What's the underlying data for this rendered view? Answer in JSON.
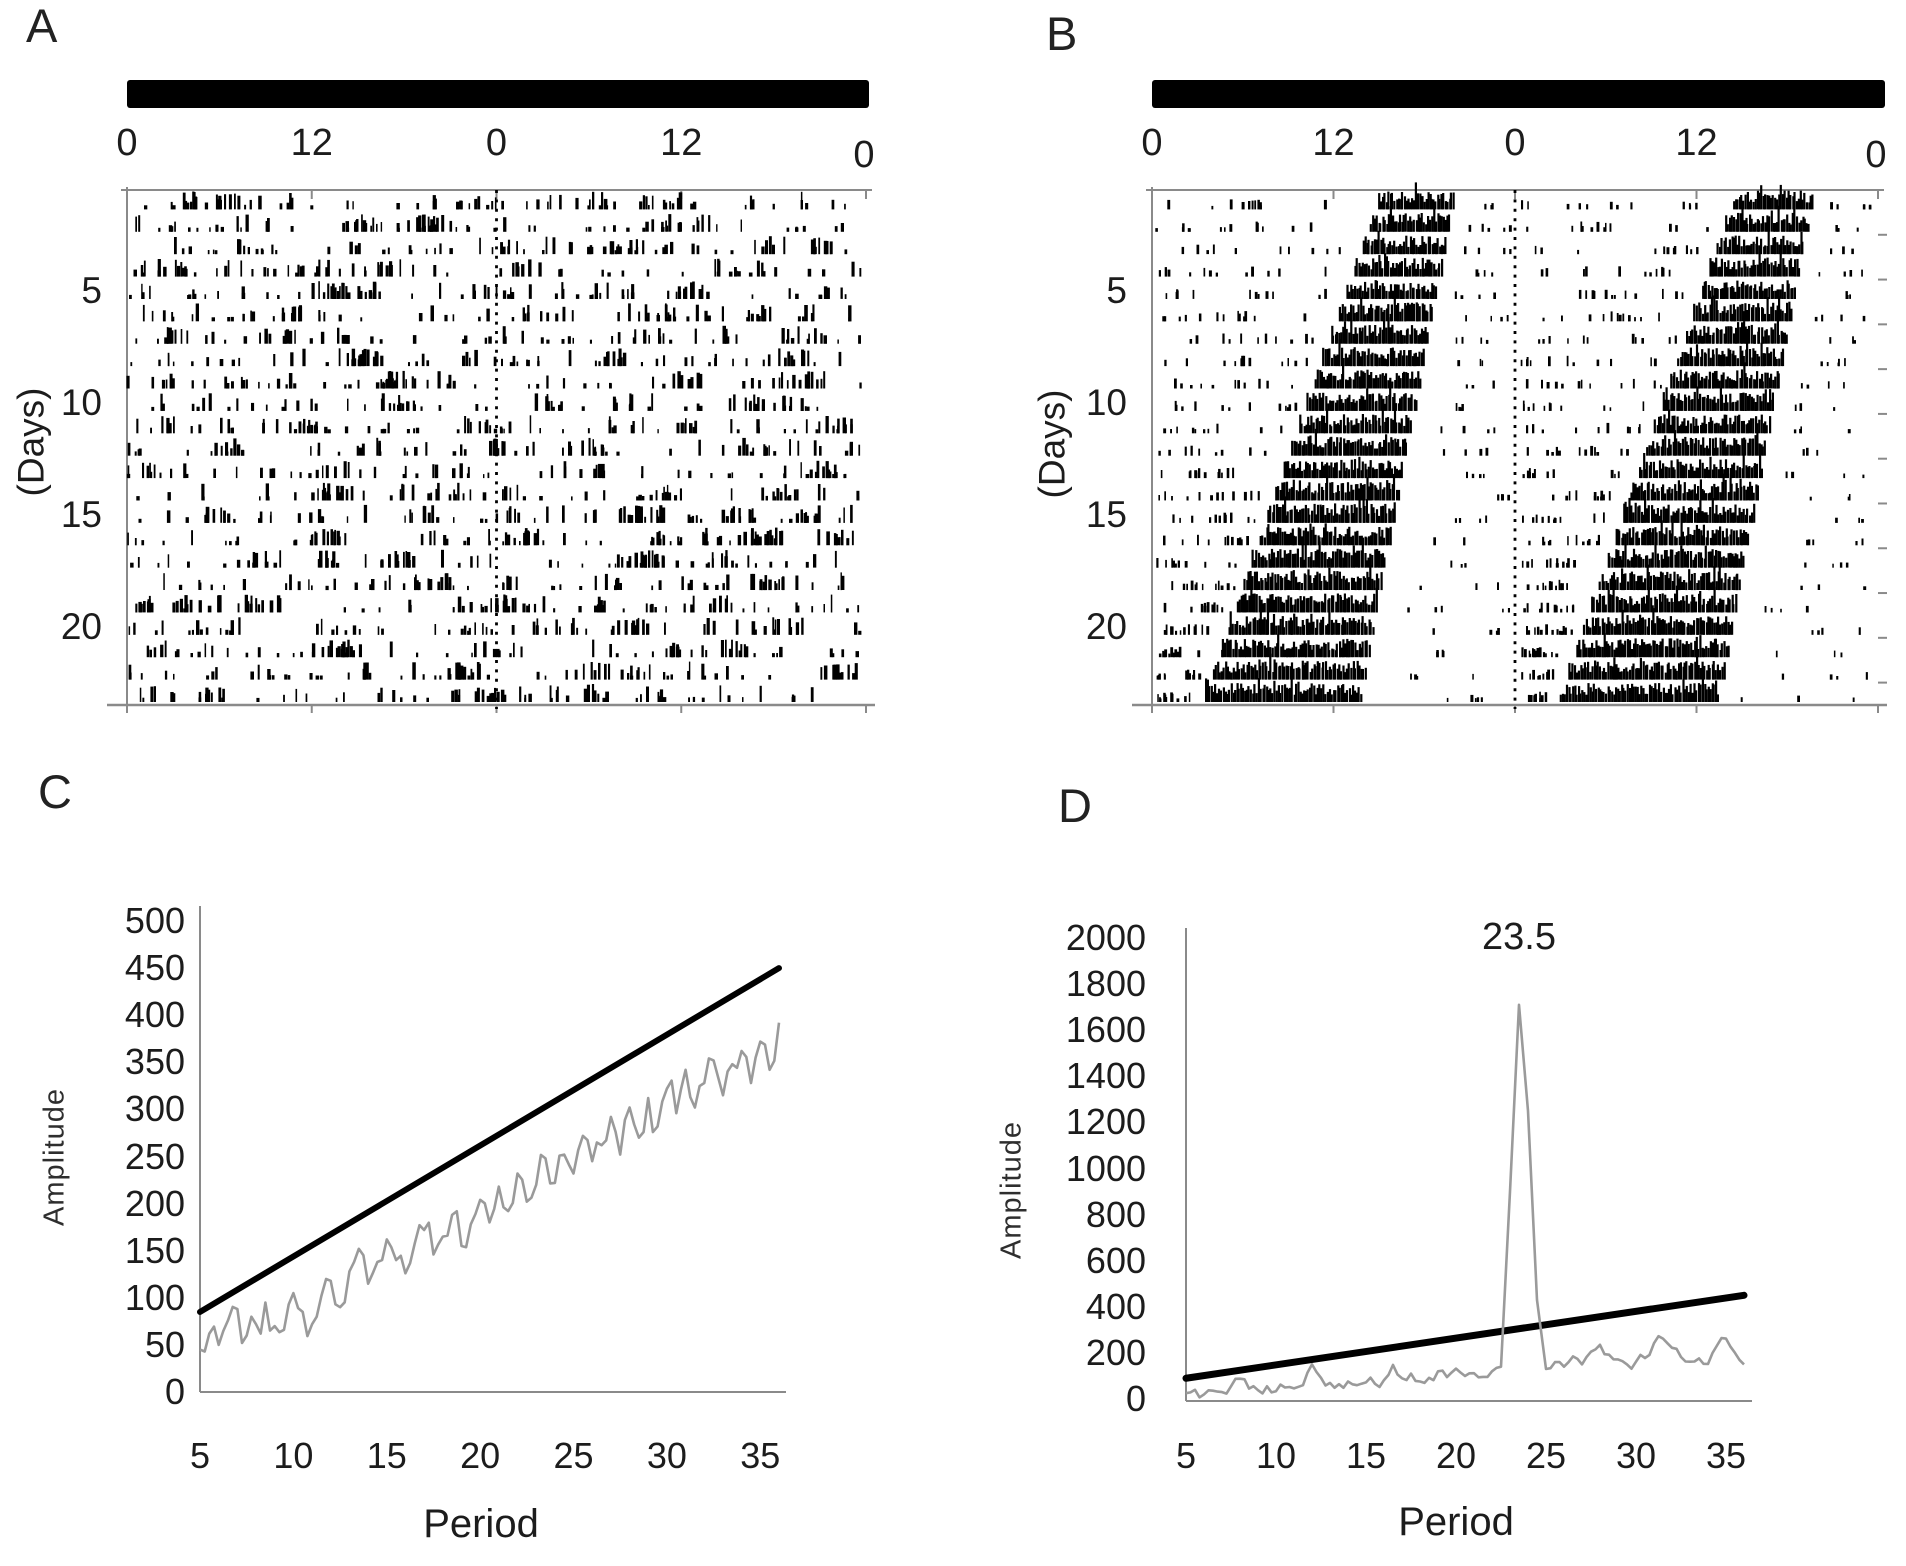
{
  "colors": {
    "background": "#ffffff",
    "activity": "#000000",
    "axis": "#8a8a8a",
    "periodogram_line": "#9a9a9a",
    "significance_line": "#000000",
    "dark_phase_bar": "#000000"
  },
  "panels": {
    "a": {
      "label": "A",
      "top_axis_labels": [
        "0",
        "12",
        "0",
        "12",
        "0"
      ],
      "y_axis_title": "(Days)",
      "y_tick_labels": [
        "5",
        "10",
        "15",
        "20"
      ]
    },
    "b": {
      "label": "B",
      "top_axis_labels": [
        "0",
        "12",
        "0",
        "12",
        "0"
      ],
      "y_axis_title": "(Days)",
      "y_tick_labels": [
        "5",
        "10",
        "15",
        "20"
      ]
    },
    "c": {
      "label": "C",
      "y_axis_title": "Amplitude",
      "x_axis_title": "Period",
      "y_tick_labels": [
        "500",
        "450",
        "400",
        "350",
        "300",
        "250",
        "200",
        "150",
        "100",
        "50",
        "0"
      ],
      "x_tick_labels": [
        "5",
        "10",
        "15",
        "20",
        "25",
        "30",
        "35"
      ]
    },
    "d": {
      "label": "D",
      "y_axis_title": "Amplitude",
      "x_axis_title": "Period",
      "peak_label": "23.5",
      "y_tick_labels": [
        "2000",
        "1800",
        "1600",
        "1400",
        "1200",
        "1000",
        "800",
        "600",
        "400",
        "200",
        "0"
      ],
      "x_tick_labels": [
        "5",
        "10",
        "15",
        "20",
        "25",
        "30",
        "35"
      ]
    }
  },
  "chart_data": [
    {
      "panel": "A",
      "type": "actogram",
      "pattern": "arrhythmic",
      "days": 23,
      "double_plotted_hours": 48,
      "top_hour_ticks": [
        0,
        12,
        24,
        36,
        48
      ],
      "day_ticks": [
        5,
        10,
        15,
        20
      ],
      "dark_bar": "full-width (constant darkness)",
      "seed": 11,
      "note": "activity raster is stochastic scatter; regenerated deterministically, not pixel-exact"
    },
    {
      "panel": "B",
      "type": "actogram",
      "pattern": "free_running_rhythm",
      "days": 23,
      "double_plotted_hours": 48,
      "top_hour_ticks": [
        0,
        12,
        24,
        36,
        48
      ],
      "day_ticks": [
        5,
        10,
        15,
        20
      ],
      "free_running_period_h": 23.5,
      "onset_day1_h": 15,
      "onset_drift_h_per_day": 0.52,
      "offset_day1_h": 20,
      "offset_drift_h_per_day": 0.28,
      "dark_bar": "full-width (constant darkness)",
      "seed": 5,
      "note": "consolidated activity bout drifting earlier each day (tau < 24 h)"
    },
    {
      "panel": "C",
      "type": "line",
      "title": "",
      "xlabel": "Period",
      "ylabel": "Amplitude",
      "xlim": [
        5,
        36
      ],
      "ylim": [
        0,
        500
      ],
      "y_tick_step": 50,
      "x_ticks": [
        5,
        10,
        15,
        20,
        25,
        30,
        35
      ],
      "grid": false,
      "legend": "none",
      "x_start": 5,
      "x_step": 0.5,
      "series": [
        {
          "name": "periodogram",
          "style": "gray_noisy",
          "values": [
            45,
            62,
            50,
            76,
            88,
            60,
            72,
            95,
            70,
            66,
            105,
            85,
            72,
            102,
            118,
            90,
            128,
            152,
            115,
            138,
            162,
            140,
            126,
            158,
            172,
            146,
            165,
            188,
            155,
            178,
            204,
            180,
            218,
            192,
            232,
            202,
            220,
            248,
            222,
            252,
            232,
            272,
            245,
            262,
            292,
            252,
            302,
            270,
            312,
            282,
            322,
            296,
            342,
            302,
            328,
            352,
            315,
            348,
            362,
            328,
            372,
            342,
            392
          ]
        },
        {
          "name": "significance_threshold",
          "style": "black_straight",
          "points": [
            [
              5,
              85
            ],
            [
              36,
              450
            ]
          ]
        }
      ],
      "significant_peak": null
    },
    {
      "panel": "D",
      "type": "line",
      "title": "",
      "xlabel": "Period",
      "ylabel": "Amplitude",
      "xlim": [
        5,
        36
      ],
      "ylim": [
        0,
        2000
      ],
      "y_tick_step": 200,
      "x_ticks": [
        5,
        10,
        15,
        20,
        25,
        30,
        35
      ],
      "grid": false,
      "legend": "none",
      "x_start": 5,
      "x_step": 0.5,
      "series": [
        {
          "name": "periodogram",
          "style": "gray_noisy",
          "values": [
            25,
            40,
            20,
            36,
            30,
            55,
            88,
            45,
            38,
            55,
            34,
            50,
            46,
            60,
            150,
            92,
            70,
            64,
            76,
            60,
            72,
            66,
            82,
            148,
            90,
            110,
            76,
            92,
            120,
            95,
            132,
            100,
            112,
            96,
            120,
            140,
            900,
            1710,
            1250,
            430,
            130,
            160,
            140,
            185,
            150,
            205,
            235,
            192,
            172,
            150,
            162,
            178,
            242,
            262,
            222,
            182,
            162,
            176,
            152,
            232,
            262,
            200,
            150
          ]
        },
        {
          "name": "significance_threshold",
          "style": "black_straight",
          "points": [
            [
              5,
              90
            ],
            [
              36,
              450
            ]
          ]
        }
      ],
      "significant_peak": {
        "period": 23.5,
        "amplitude": 1710,
        "annotation": "23.5"
      }
    }
  ]
}
